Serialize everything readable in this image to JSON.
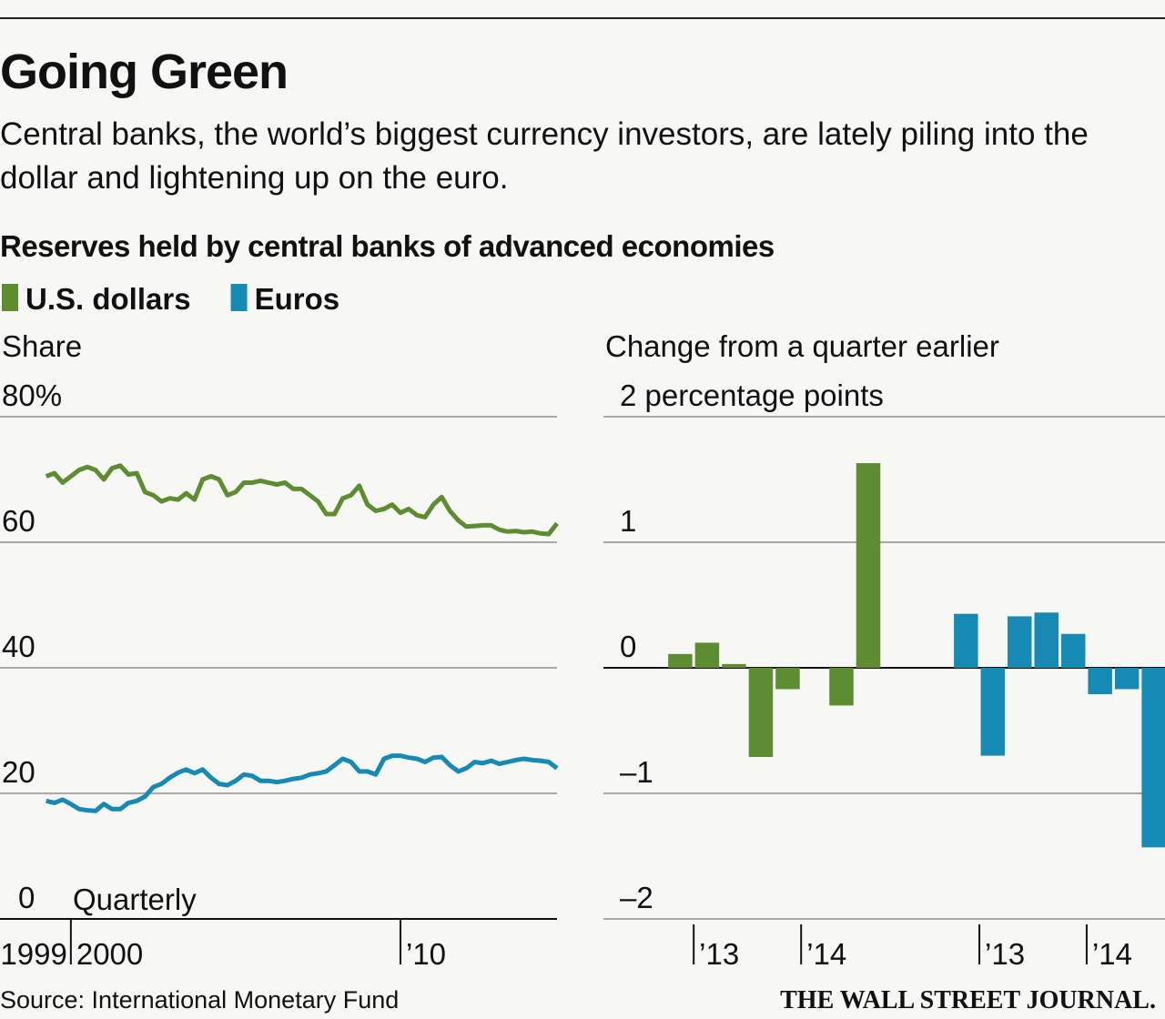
{
  "title": "Going Green",
  "subtitle": "Central banks, the world’s biggest currency investors, are lately piling into the dollar and lightening up on the euro.",
  "section_title": "Reserves held by central banks of advanced economies",
  "source": "Source: International Monetary Fund",
  "credit": "THE WALL STREET JOURNAL.",
  "chart_data": [
    {
      "type": "line",
      "y_label": "Share",
      "annotation": "Quarterly",
      "x_start_label": "1999",
      "x": [
        1999.25,
        1999.5,
        1999.75,
        2000,
        2000.25,
        2000.5,
        2000.75,
        2001,
        2001.25,
        2001.5,
        2001.75,
        2002,
        2002.25,
        2002.5,
        2002.75,
        2003,
        2003.25,
        2003.5,
        2003.75,
        2004,
        2004.25,
        2004.5,
        2004.75,
        2005,
        2005.25,
        2005.5,
        2005.75,
        2006,
        2006.25,
        2006.5,
        2006.75,
        2007,
        2007.25,
        2007.5,
        2007.75,
        2008,
        2008.25,
        2008.5,
        2008.75,
        2009,
        2009.25,
        2009.5,
        2009.75,
        2010,
        2010.25,
        2010.5,
        2010.75,
        2011,
        2011.25,
        2011.5,
        2011.75,
        2012,
        2012.25,
        2012.5,
        2012.75,
        2013,
        2013.25,
        2013.5,
        2013.75,
        2014,
        2014.25,
        2014.5,
        2014.75
      ],
      "xlim": [
        1997.85,
        2014.75
      ],
      "xticks": [
        2000,
        {
          "value": 2010,
          "label": "’10"
        }
      ],
      "ylim": [
        0,
        80
      ],
      "yticks": [
        0,
        20,
        40,
        60,
        {
          "value": 80,
          "label": "80%"
        }
      ],
      "grid": true,
      "series": [
        {
          "name": "U.S. dollars",
          "color": "#5e8c31",
          "values": [
            70.5,
            71,
            69.5,
            70.5,
            71.5,
            72,
            71.5,
            70,
            71.8,
            72.2,
            70.8,
            71,
            68,
            67.5,
            66.5,
            67,
            66.8,
            67.8,
            66.8,
            70,
            70.5,
            70,
            67.5,
            68,
            69.5,
            69.5,
            69.8,
            69.5,
            69.2,
            69.5,
            68.5,
            68.5,
            67.5,
            66.5,
            64.5,
            64.5,
            67,
            67.5,
            69,
            66,
            65,
            65.3,
            66,
            64.7,
            65.3,
            64.3,
            64,
            66,
            67.2,
            65,
            63.5,
            62.5,
            62.6,
            62.7,
            62.7,
            62,
            61.7,
            61.8,
            61.6,
            61.7,
            61.4,
            61.3,
            63
          ]
        },
        {
          "name": "Euros",
          "color": "#168ab2",
          "values": [
            18.8,
            18.5,
            19,
            18.3,
            17.5,
            17.3,
            17.2,
            18.3,
            17.5,
            17.5,
            18.5,
            18.8,
            19.5,
            21,
            21.5,
            22.5,
            23.3,
            23.8,
            23.2,
            23.8,
            22.5,
            21.5,
            21.3,
            22,
            23,
            22.8,
            22,
            22,
            21.8,
            22,
            22.3,
            22.5,
            23,
            23.2,
            23.5,
            24.5,
            25.5,
            25,
            23.5,
            23.5,
            23,
            25.5,
            26,
            26,
            25.7,
            25.5,
            25,
            25.7,
            25.8,
            24.5,
            23.5,
            24,
            25,
            24.8,
            25.2,
            24.7,
            25,
            25.3,
            25.5,
            25.3,
            25.2,
            25,
            24
          ]
        }
      ]
    },
    {
      "type": "bar",
      "y_label": "Change from a quarter earlier",
      "x": [
        2012.75,
        2013,
        2013.25,
        2013.5,
        2013.75,
        2014,
        2014.25,
        2014.5
      ],
      "xlim": [
        2012.16,
        2014.93
      ],
      "xticks": [
        {
          "value": 2013,
          "label": "’13"
        },
        {
          "value": 2014,
          "label": "’14"
        }
      ],
      "ylim": [
        -2,
        2
      ],
      "yticks": [
        {
          "value": -2,
          "label": "–2"
        },
        {
          "value": -1,
          "label": "–1"
        },
        0,
        1,
        {
          "value": 2,
          "label": "2 percentage points"
        }
      ],
      "grid": true,
      "series": [
        {
          "color": "#5e8c31",
          "values": [
            0.11,
            0.2,
            0.03,
            -0.71,
            -0.17,
            null,
            -0.3,
            1.63
          ]
        }
      ]
    },
    {
      "type": "bar",
      "x": [
        2012.75,
        2013,
        2013.25,
        2013.5,
        2013.75,
        2014,
        2014.25,
        2014.5
      ],
      "xlim": [
        2012.27,
        2014.73
      ],
      "xticks": [
        {
          "value": 2013,
          "label": "’13"
        },
        {
          "value": 2014,
          "label": "’14"
        }
      ],
      "ylim": [
        -2,
        2
      ],
      "series": [
        {
          "color": "#168ab2",
          "values": [
            0.43,
            -0.7,
            0.41,
            0.44,
            0.27,
            -0.21,
            -0.17,
            -1.43
          ]
        }
      ]
    }
  ]
}
